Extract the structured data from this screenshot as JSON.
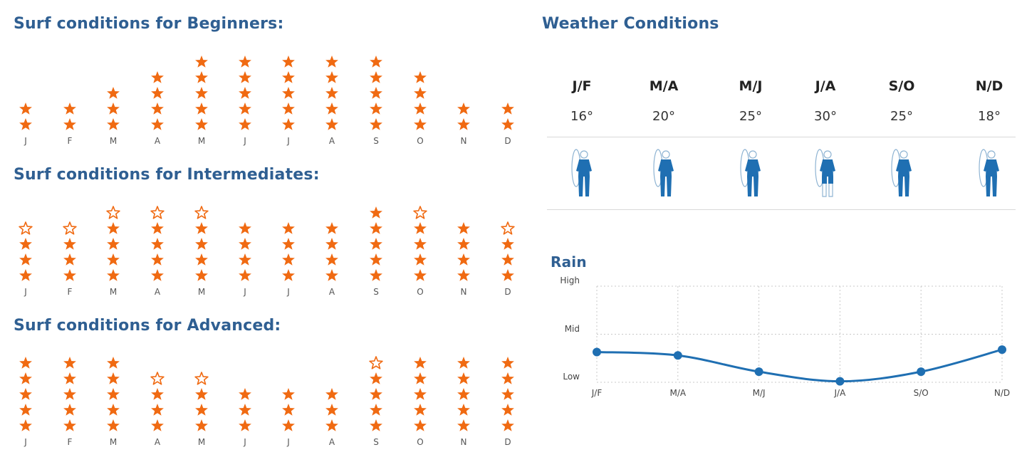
{
  "beginners": {
    "title": "Surf conditions for Beginners:",
    "months": [
      "J",
      "F",
      "M",
      "A",
      "M",
      "J",
      "J",
      "A",
      "S",
      "O",
      "N",
      "D"
    ],
    "ratings": [
      2,
      2,
      3,
      4,
      5,
      5,
      5,
      5,
      5,
      4,
      2,
      2
    ]
  },
  "intermediates": {
    "title": "Surf conditions for Intermediates:",
    "months": [
      "J",
      "F",
      "M",
      "A",
      "M",
      "J",
      "J",
      "A",
      "S",
      "O",
      "N",
      "D"
    ],
    "ratings": [
      3.5,
      3.5,
      4.5,
      4.5,
      4.5,
      4,
      4,
      4,
      5,
      4.5,
      4,
      3.5
    ]
  },
  "advanced": {
    "title": "Surf conditions for Advanced:",
    "months": [
      "J",
      "F",
      "M",
      "A",
      "M",
      "J",
      "J",
      "A",
      "S",
      "O",
      "N",
      "D"
    ],
    "ratings": [
      5,
      5,
      5,
      3.5,
      3.5,
      3,
      3,
      3,
      4.5,
      5,
      5,
      5
    ]
  },
  "weather": {
    "title": "Weather Conditions",
    "periods": [
      {
        "label": "J/F",
        "temp": "16°"
      },
      {
        "label": "M/A",
        "temp": "20°"
      },
      {
        "label": "M/J",
        "temp": "25°"
      },
      {
        "label": "J/A",
        "temp": "30°"
      },
      {
        "label": "S/O",
        "temp": "25°"
      },
      {
        "label": "N/D",
        "temp": "18°"
      }
    ],
    "wetsuit_icons": [
      "full-wetsuit-icon",
      "full-wetsuit-icon",
      "full-wetsuit-icon",
      "shorty-wetsuit-icon",
      "full-wetsuit-icon",
      "full-wetsuit-icon"
    ]
  },
  "chart_data": {
    "type": "line",
    "title": "Rain",
    "x": [
      "J/F",
      "M/A",
      "M/J",
      "J/A",
      "S/O",
      "N/D"
    ],
    "y_ticks": [
      "High",
      "Mid",
      "Low"
    ],
    "series": [
      {
        "values": [
          0.63,
          0.56,
          0.22,
          0.02,
          0.22,
          0.68
        ]
      }
    ],
    "ylim": [
      0,
      2
    ],
    "grid": true,
    "color": "#1f6fb2"
  },
  "colors": {
    "star": "#f06a12",
    "heading": "#2f5f92",
    "wetsuit": "#1f6fb2"
  }
}
